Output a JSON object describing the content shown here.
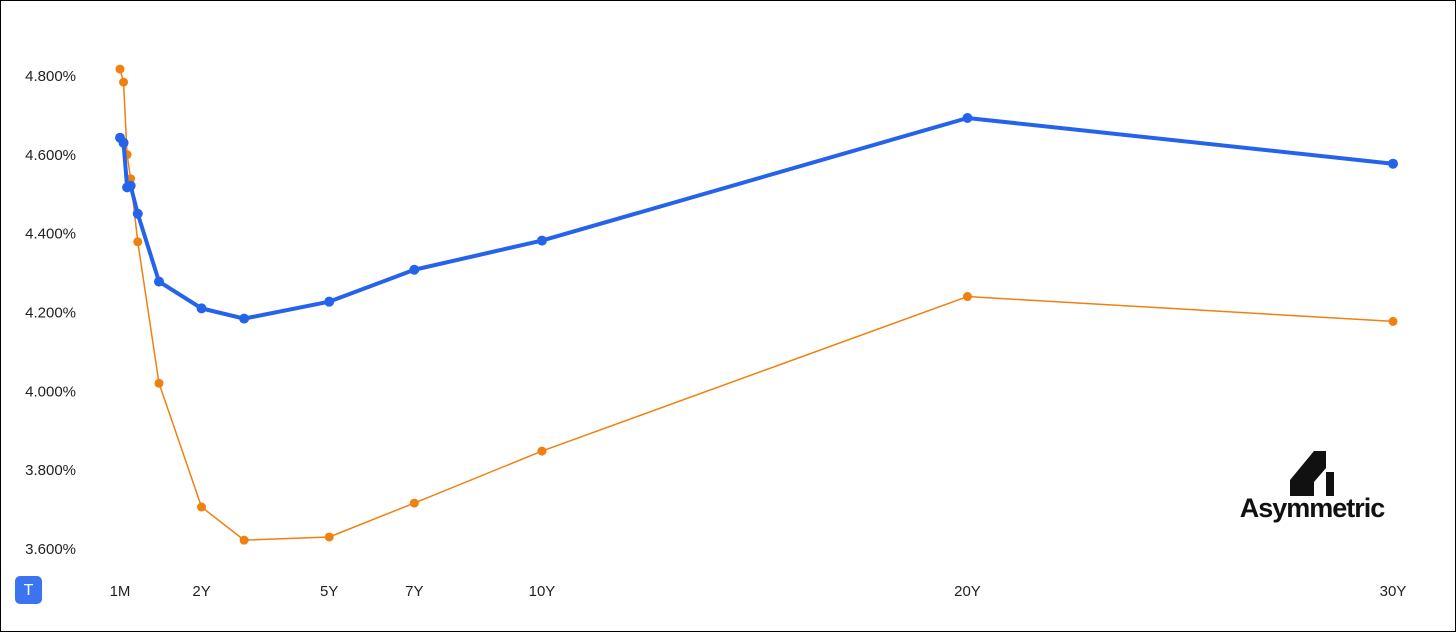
{
  "chart_data": {
    "type": "line",
    "x": [
      0.0833,
      0.1667,
      0.25,
      0.3333,
      0.5,
      1,
      2,
      3,
      5,
      7,
      10,
      20,
      30
    ],
    "series": [
      {
        "color": "#2563eb",
        "values": [
          4.646,
          4.633,
          4.52,
          4.524,
          4.453,
          4.281,
          4.213,
          4.187,
          4.23,
          4.311,
          4.385,
          4.696,
          4.58
        ]
      },
      {
        "color": "#f0800f",
        "values": [
          4.82,
          4.787,
          4.603,
          4.542,
          4.382,
          4.023,
          3.709,
          3.625,
          3.633,
          3.719,
          3.851,
          4.243,
          4.18
        ]
      }
    ],
    "xlim": [
      0.0833,
      30
    ],
    "xticks": [
      {
        "value": 0.0833,
        "label": "1M"
      },
      {
        "value": 2,
        "label": "2Y"
      },
      {
        "value": 5,
        "label": "5Y"
      },
      {
        "value": 7,
        "label": "7Y"
      },
      {
        "value": 10,
        "label": "10Y"
      },
      {
        "value": 20,
        "label": "20Y"
      },
      {
        "value": 30,
        "label": "30Y"
      }
    ],
    "ylim": [
      3.6,
      4.8
    ],
    "yticks": [
      {
        "value": 3.6,
        "label": "3.600%"
      },
      {
        "value": 3.8,
        "label": "3.800%"
      },
      {
        "value": 4.0,
        "label": "4.000%"
      },
      {
        "value": 4.2,
        "label": "4.200%"
      },
      {
        "value": 4.4,
        "label": "4.400%"
      },
      {
        "value": 4.6,
        "label": "4.600%"
      },
      {
        "value": 4.8,
        "label": "4.800%"
      }
    ],
    "grid": false
  },
  "logo_text": "Asymmetric",
  "toolbar_button": "T"
}
